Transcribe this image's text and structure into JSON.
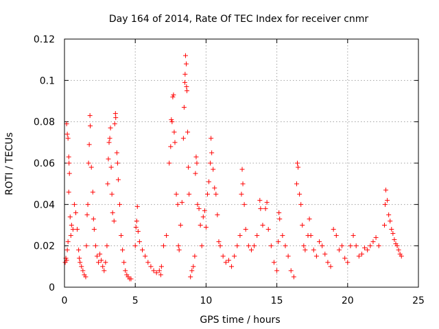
{
  "chart_data": {
    "type": "scatter",
    "title": "Day 164 of 2014, Rate Of TEC Index for receiver cnmr",
    "xlabel": "GPS time / hours",
    "ylabel": "ROTI / TECUs",
    "xlim": [
      0,
      25
    ],
    "ylim": [
      0,
      0.12
    ],
    "x_ticks": [
      0,
      5,
      10,
      15,
      20,
      25
    ],
    "x_tick_labels": [
      "0",
      "5",
      "10",
      "15",
      "20",
      "25"
    ],
    "y_ticks": [
      0,
      0.02,
      0.04,
      0.06,
      0.08,
      0.1,
      0.12
    ],
    "y_tick_labels": [
      "0",
      "0.02",
      "0.04",
      "0.06",
      "0.08",
      "0.1",
      "0.12"
    ],
    "grid": true,
    "marker": "+",
    "color": "#ff0000",
    "series": [
      {
        "name": "ROTI",
        "points": [
          [
            0.05,
            0.012
          ],
          [
            0.1,
            0.014
          ],
          [
            0.15,
            0.013
          ],
          [
            0.2,
            0.018
          ],
          [
            0.25,
            0.022
          ],
          [
            0.3,
            0.063
          ],
          [
            0.32,
            0.06
          ],
          [
            0.35,
            0.055
          ],
          [
            0.4,
            0.034
          ],
          [
            0.45,
            0.025
          ],
          [
            0.15,
            0.079
          ],
          [
            0.2,
            0.074
          ],
          [
            0.25,
            0.072
          ],
          [
            0.3,
            0.046
          ],
          [
            0.5,
            0.03
          ],
          [
            0.6,
            0.028
          ],
          [
            0.7,
            0.04
          ],
          [
            0.8,
            0.036
          ],
          [
            0.9,
            0.028
          ],
          [
            1.0,
            0.018
          ],
          [
            1.05,
            0.014
          ],
          [
            1.1,
            0.012
          ],
          [
            1.2,
            0.01
          ],
          [
            1.3,
            0.008
          ],
          [
            1.4,
            0.006
          ],
          [
            1.5,
            0.005
          ],
          [
            1.55,
            0.02
          ],
          [
            1.6,
            0.035
          ],
          [
            1.65,
            0.04
          ],
          [
            1.7,
            0.06
          ],
          [
            1.75,
            0.069
          ],
          [
            1.8,
            0.083
          ],
          [
            1.82,
            0.078
          ],
          [
            1.9,
            0.058
          ],
          [
            2.0,
            0.046
          ],
          [
            2.05,
            0.033
          ],
          [
            2.1,
            0.028
          ],
          [
            2.2,
            0.02
          ],
          [
            2.3,
            0.015
          ],
          [
            2.4,
            0.012
          ],
          [
            2.5,
            0.016
          ],
          [
            2.6,
            0.013
          ],
          [
            2.7,
            0.01
          ],
          [
            2.8,
            0.008
          ],
          [
            2.9,
            0.012
          ],
          [
            3.0,
            0.02
          ],
          [
            3.05,
            0.05
          ],
          [
            3.1,
            0.062
          ],
          [
            3.15,
            0.07
          ],
          [
            3.2,
            0.072
          ],
          [
            3.25,
            0.077
          ],
          [
            3.3,
            0.058
          ],
          [
            3.35,
            0.045
          ],
          [
            3.4,
            0.036
          ],
          [
            3.5,
            0.032
          ],
          [
            3.55,
            0.079
          ],
          [
            3.6,
            0.084
          ],
          [
            3.62,
            0.082
          ],
          [
            3.7,
            0.065
          ],
          [
            3.75,
            0.06
          ],
          [
            3.8,
            0.052
          ],
          [
            3.9,
            0.04
          ],
          [
            4.0,
            0.025
          ],
          [
            4.1,
            0.018
          ],
          [
            4.2,
            0.012
          ],
          [
            4.3,
            0.008
          ],
          [
            4.4,
            0.006
          ],
          [
            4.5,
            0.005
          ],
          [
            4.6,
            0.004
          ],
          [
            4.7,
            0.004
          ],
          [
            5.0,
            0.02
          ],
          [
            5.05,
            0.029
          ],
          [
            5.1,
            0.032
          ],
          [
            5.15,
            0.039
          ],
          [
            5.2,
            0.027
          ],
          [
            5.3,
            0.022
          ],
          [
            5.5,
            0.018
          ],
          [
            5.7,
            0.015
          ],
          [
            5.9,
            0.012
          ],
          [
            6.1,
            0.01
          ],
          [
            6.3,
            0.008
          ],
          [
            6.5,
            0.007
          ],
          [
            6.7,
            0.008
          ],
          [
            6.8,
            0.006
          ],
          [
            6.85,
            0.01
          ],
          [
            7.0,
            0.02
          ],
          [
            7.2,
            0.025
          ],
          [
            7.4,
            0.06
          ],
          [
            7.5,
            0.068
          ],
          [
            7.55,
            0.081
          ],
          [
            7.6,
            0.08
          ],
          [
            7.65,
            0.092
          ],
          [
            7.7,
            0.093
          ],
          [
            7.75,
            0.075
          ],
          [
            7.8,
            0.07
          ],
          [
            7.9,
            0.045
          ],
          [
            8.0,
            0.04
          ],
          [
            8.05,
            0.02
          ],
          [
            8.1,
            0.018
          ],
          [
            8.2,
            0.03
          ],
          [
            8.3,
            0.041
          ],
          [
            8.4,
            0.072
          ],
          [
            8.45,
            0.087
          ],
          [
            8.5,
            0.099
          ],
          [
            8.52,
            0.103
          ],
          [
            8.55,
            0.112
          ],
          [
            8.6,
            0.108
          ],
          [
            8.62,
            0.097
          ],
          [
            8.65,
            0.095
          ],
          [
            8.7,
            0.075
          ],
          [
            8.75,
            0.058
          ],
          [
            8.8,
            0.045
          ],
          [
            8.9,
            0.005
          ],
          [
            9.0,
            0.008
          ],
          [
            9.1,
            0.01
          ],
          [
            9.2,
            0.015
          ],
          [
            9.25,
            0.055
          ],
          [
            9.3,
            0.063
          ],
          [
            9.35,
            0.06
          ],
          [
            9.4,
            0.04
          ],
          [
            9.5,
            0.038
          ],
          [
            9.6,
            0.03
          ],
          [
            9.7,
            0.02
          ],
          [
            9.8,
            0.034
          ],
          [
            9.9,
            0.037
          ],
          [
            10.0,
            0.029
          ],
          [
            10.1,
            0.045
          ],
          [
            10.2,
            0.051
          ],
          [
            10.3,
            0.06
          ],
          [
            10.35,
            0.072
          ],
          [
            10.4,
            0.065
          ],
          [
            10.5,
            0.057
          ],
          [
            10.6,
            0.048
          ],
          [
            10.7,
            0.045
          ],
          [
            10.8,
            0.035
          ],
          [
            10.9,
            0.022
          ],
          [
            11.0,
            0.02
          ],
          [
            11.2,
            0.015
          ],
          [
            11.4,
            0.012
          ],
          [
            11.6,
            0.013
          ],
          [
            11.8,
            0.01
          ],
          [
            12.0,
            0.015
          ],
          [
            12.2,
            0.02
          ],
          [
            12.4,
            0.025
          ],
          [
            12.5,
            0.045
          ],
          [
            12.55,
            0.057
          ],
          [
            12.6,
            0.05
          ],
          [
            12.7,
            0.04
          ],
          [
            12.8,
            0.028
          ],
          [
            13.0,
            0.02
          ],
          [
            13.2,
            0.018
          ],
          [
            13.4,
            0.02
          ],
          [
            13.6,
            0.025
          ],
          [
            13.8,
            0.042
          ],
          [
            13.85,
            0.038
          ],
          [
            14.0,
            0.03
          ],
          [
            14.2,
            0.038
          ],
          [
            14.3,
            0.041
          ],
          [
            14.4,
            0.028
          ],
          [
            14.6,
            0.02
          ],
          [
            14.8,
            0.012
          ],
          [
            15.0,
            0.008
          ],
          [
            15.1,
            0.022
          ],
          [
            15.15,
            0.036
          ],
          [
            15.2,
            0.033
          ],
          [
            15.4,
            0.025
          ],
          [
            15.6,
            0.02
          ],
          [
            15.8,
            0.015
          ],
          [
            16.0,
            0.008
          ],
          [
            16.2,
            0.005
          ],
          [
            16.4,
            0.05
          ],
          [
            16.45,
            0.06
          ],
          [
            16.5,
            0.058
          ],
          [
            16.6,
            0.045
          ],
          [
            16.7,
            0.04
          ],
          [
            16.8,
            0.03
          ],
          [
            16.9,
            0.02
          ],
          [
            17.0,
            0.018
          ],
          [
            17.2,
            0.025
          ],
          [
            17.3,
            0.033
          ],
          [
            17.4,
            0.025
          ],
          [
            17.6,
            0.018
          ],
          [
            17.8,
            0.015
          ],
          [
            18.0,
            0.022
          ],
          [
            18.2,
            0.02
          ],
          [
            18.4,
            0.016
          ],
          [
            18.6,
            0.012
          ],
          [
            18.8,
            0.01
          ],
          [
            19.0,
            0.028
          ],
          [
            19.2,
            0.025
          ],
          [
            19.4,
            0.018
          ],
          [
            19.6,
            0.02
          ],
          [
            19.8,
            0.014
          ],
          [
            20.0,
            0.012
          ],
          [
            20.2,
            0.02
          ],
          [
            20.4,
            0.025
          ],
          [
            20.6,
            0.02
          ],
          [
            20.8,
            0.015
          ],
          [
            21.0,
            0.016
          ],
          [
            21.2,
            0.019
          ],
          [
            21.4,
            0.018
          ],
          [
            21.6,
            0.02
          ],
          [
            21.8,
            0.022
          ],
          [
            22.0,
            0.024
          ],
          [
            22.2,
            0.02
          ],
          [
            22.6,
            0.03
          ],
          [
            22.65,
            0.04
          ],
          [
            22.7,
            0.047
          ],
          [
            22.8,
            0.042
          ],
          [
            22.9,
            0.035
          ],
          [
            23.0,
            0.032
          ],
          [
            23.1,
            0.028
          ],
          [
            23.2,
            0.026
          ],
          [
            23.3,
            0.023
          ],
          [
            23.4,
            0.021
          ],
          [
            23.5,
            0.02
          ],
          [
            23.6,
            0.018
          ],
          [
            23.7,
            0.016
          ],
          [
            23.8,
            0.015
          ]
        ]
      }
    ]
  }
}
